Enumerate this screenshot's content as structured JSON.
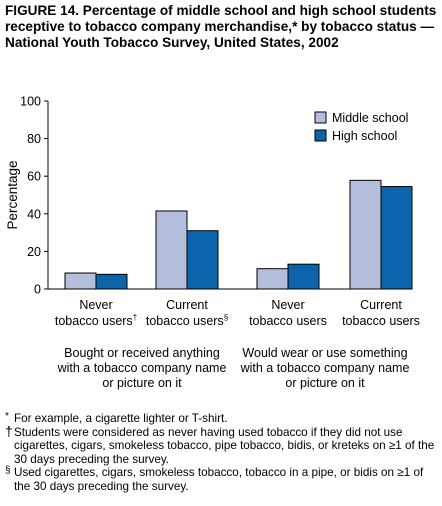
{
  "figure": {
    "title": "FIGURE 14. Percentage of middle school and high school students receptive to tobacco company merchandise,* by tobacco status — National Youth Tobacco Survey, United States, 2002"
  },
  "chart_data": {
    "type": "bar",
    "ylabel": "Percentage",
    "ylim": [
      0,
      100
    ],
    "yticks": [
      "0",
      "20",
      "40",
      "60",
      "80",
      "100"
    ],
    "categories": [
      {
        "line1": "Never",
        "line2": "tobacco users",
        "mark": "†"
      },
      {
        "line1": "Current",
        "line2": "tobacco users",
        "mark": "§"
      },
      {
        "line1": "Never",
        "line2": "tobacco users",
        "mark": ""
      },
      {
        "line1": "Current",
        "line2": "tobacco users",
        "mark": ""
      }
    ],
    "series": [
      {
        "name": "Middle school",
        "color": "#b3bedd",
        "values": [
          8.5,
          41.5,
          10.8,
          57.8
        ]
      },
      {
        "name": "High school",
        "color": "#0c64ad",
        "values": [
          7.8,
          31.0,
          13.2,
          54.5
        ]
      }
    ],
    "legend_position": "top-right",
    "group_captions": [
      "Bought or received anything with a tobacco company name or picture on it",
      "Would wear or use something with a tobacco company name or picture on it"
    ]
  },
  "footnotes": [
    {
      "mark": "*",
      "text": "For example, a cigarette lighter or T-shirt."
    },
    {
      "mark": "†",
      "text": "Students were considered as never having used tobacco if they did not use cigarettes, cigars, smokeless tobacco, pipe tobacco, bidis, or kreteks on ≥1 of the 30 days preceding the survey."
    },
    {
      "mark": "§",
      "text": "Used cigarettes, cigars, smokeless tobacco, tobacco in a pipe, or bidis on ≥1 of the 30 days preceding the survey."
    }
  ]
}
